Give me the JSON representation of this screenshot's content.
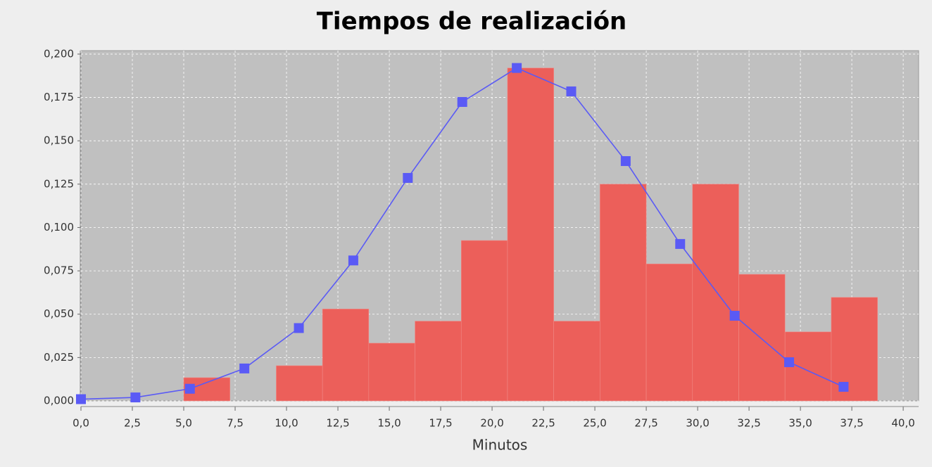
{
  "chart_data": {
    "type": "histogram",
    "title": "Tiempos de realización",
    "x_label": "Minutos",
    "bins": [
      5.0,
      7.25,
      9.5,
      11.75,
      14.0,
      16.25,
      18.5,
      20.75,
      23.0,
      25.25,
      27.5,
      29.75,
      32.0,
      34.25,
      36.5,
      38.75
    ],
    "values": [
      0.0134,
      0,
      0.0203,
      0.053,
      0.0333,
      0.046,
      0.0925,
      0.192,
      0.046,
      0.125,
      0.079,
      0.125,
      0.073,
      0.0398,
      0.0597
    ],
    "color": "#ec5f5a",
    "overlay": {
      "type": "line",
      "color": "#5a5af5",
      "x": [
        0,
        2.65,
        5.3,
        7.95,
        10.6,
        13.25,
        15.9,
        18.55,
        21.2,
        23.85,
        26.5,
        29.15,
        31.8,
        34.45,
        37.1
      ],
      "values": [
        0.001,
        0.002,
        0.007,
        0.0187,
        0.042,
        0.081,
        0.1286,
        0.1724,
        0.192,
        0.1785,
        0.1383,
        0.0905,
        0.0491,
        0.0223,
        0.0081
      ]
    },
    "xlim": [
      0,
      40.75
    ],
    "ylim": [
      0,
      0.202
    ],
    "xticks": [
      {
        "value": 0,
        "label": "0,0"
      },
      {
        "value": 2.5,
        "label": "2,5"
      },
      {
        "value": 5,
        "label": "5,0"
      },
      {
        "value": 7.5,
        "label": "7,5"
      },
      {
        "value": 10,
        "label": "10,0"
      },
      {
        "value": 12.5,
        "label": "12,5"
      },
      {
        "value": 15,
        "label": "15,0"
      },
      {
        "value": 17.5,
        "label": "17,5"
      },
      {
        "value": 20,
        "label": "20,0"
      },
      {
        "value": 22.5,
        "label": "22,5"
      },
      {
        "value": 25,
        "label": "25,0"
      },
      {
        "value": 27.5,
        "label": "27,5"
      },
      {
        "value": 30,
        "label": "30,0"
      },
      {
        "value": 32.5,
        "label": "32,5"
      },
      {
        "value": 35,
        "label": "35,0"
      },
      {
        "value": 37.5,
        "label": "37,5"
      },
      {
        "value": 40,
        "label": "40,0"
      }
    ],
    "yticks": [
      {
        "value": 0,
        "label": "0,000"
      },
      {
        "value": 0.025,
        "label": "0,025"
      },
      {
        "value": 0.05,
        "label": "0,050"
      },
      {
        "value": 0.075,
        "label": "0,075"
      },
      {
        "value": 0.1,
        "label": "0,100"
      },
      {
        "value": 0.125,
        "label": "0,125"
      },
      {
        "value": 0.15,
        "label": "0,150"
      },
      {
        "value": 0.175,
        "label": "0,175"
      },
      {
        "value": 0.2,
        "label": "0,200"
      }
    ],
    "grid": true
  }
}
